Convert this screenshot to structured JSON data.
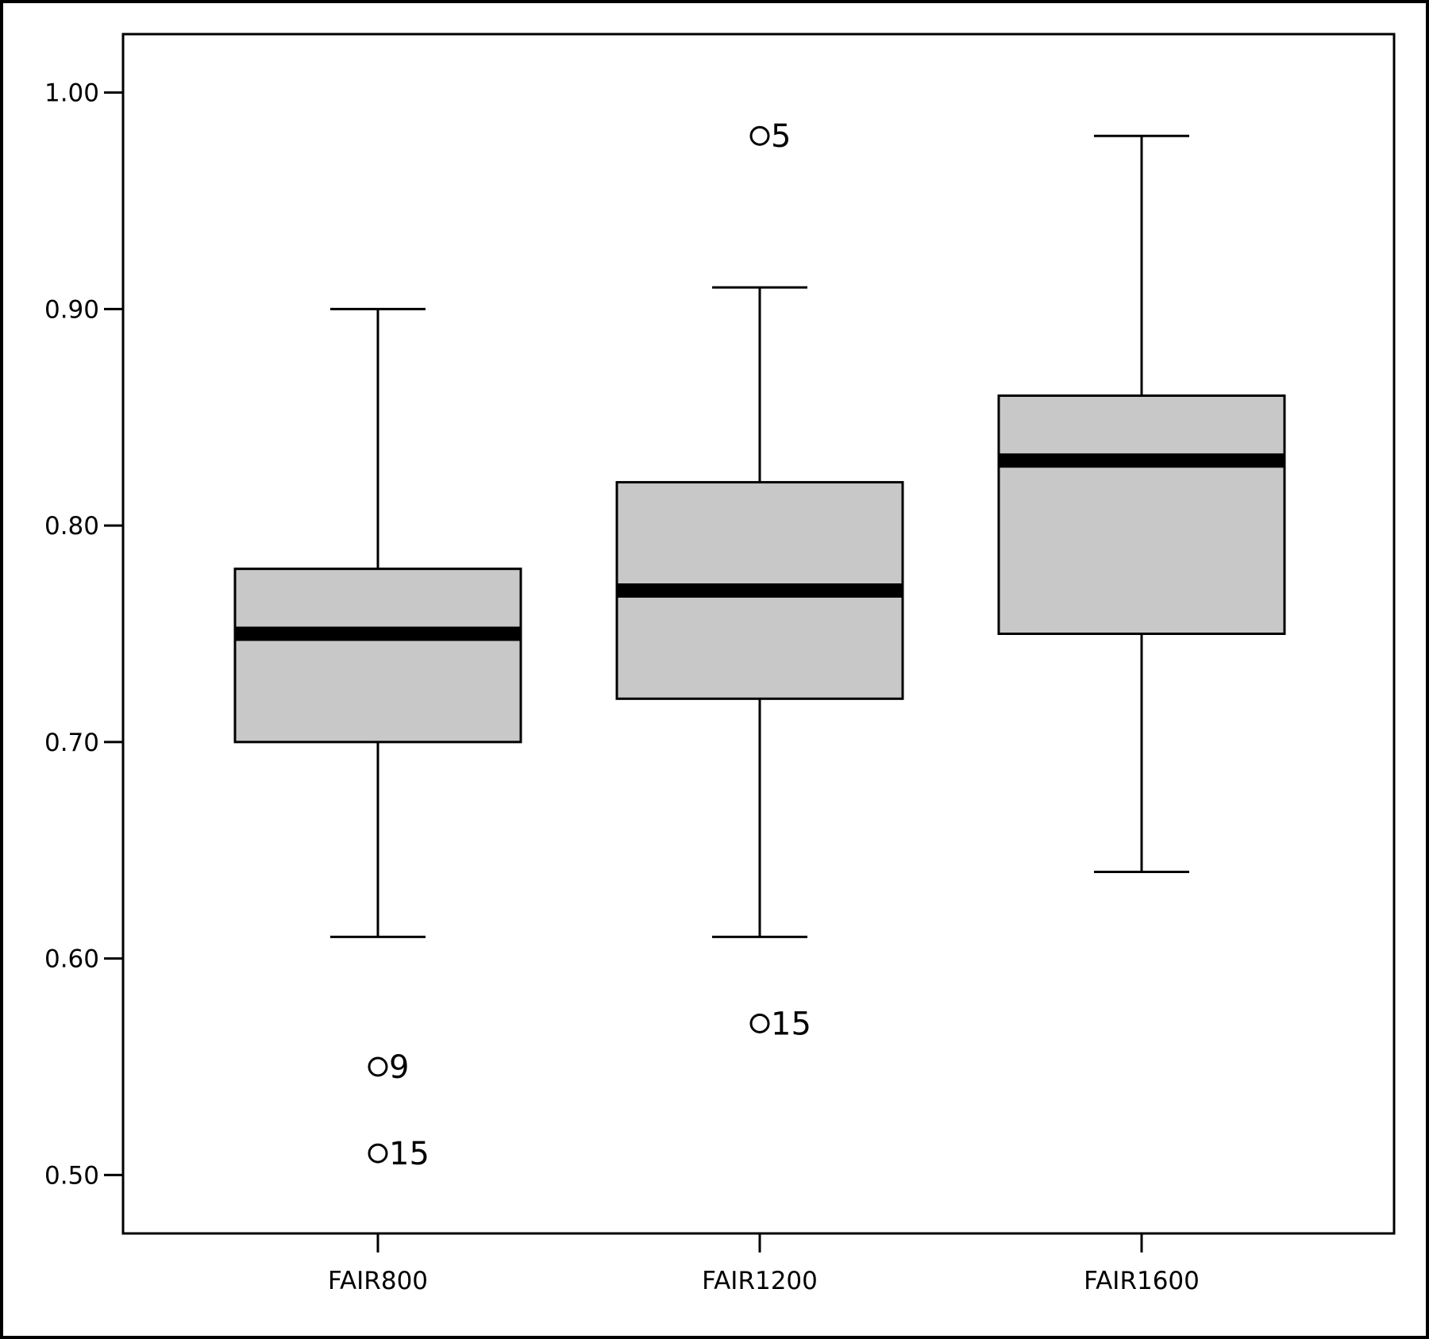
{
  "chart_data": {
    "type": "boxplot",
    "title": "",
    "xlabel": "",
    "ylabel": "",
    "categories": [
      "FAIR800",
      "FAIR1200",
      "FAIR1600"
    ],
    "ylim": [
      0.473,
      1.027
    ],
    "yticks": [
      0.5,
      0.6,
      0.7,
      0.8,
      0.9,
      1.0
    ],
    "ytick_labels": [
      "0.50",
      "0.60",
      "0.70",
      "0.80",
      "0.90",
      "1.00"
    ],
    "grid": false,
    "legend": "none",
    "box_fill_color": "#c8c8c8",
    "line_color": "#000000",
    "boxes": [
      {
        "category": "FAIR800",
        "whisker_low": 0.61,
        "q1": 0.7,
        "median": 0.75,
        "q3": 0.78,
        "whisker_high": 0.9,
        "outliers": [
          {
            "value": 0.55,
            "label": "9"
          },
          {
            "value": 0.51,
            "label": "15"
          }
        ]
      },
      {
        "category": "FAIR1200",
        "whisker_low": 0.61,
        "q1": 0.72,
        "median": 0.77,
        "q3": 0.82,
        "whisker_high": 0.91,
        "outliers": [
          {
            "value": 0.98,
            "label": "5"
          },
          {
            "value": 0.57,
            "label": "15"
          }
        ]
      },
      {
        "category": "FAIR1600",
        "whisker_low": 0.64,
        "q1": 0.75,
        "median": 0.83,
        "q3": 0.86,
        "whisker_high": 0.98,
        "outliers": []
      }
    ]
  }
}
